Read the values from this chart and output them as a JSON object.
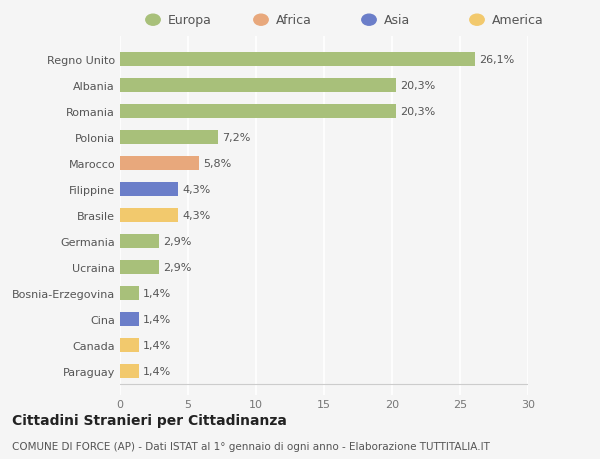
{
  "categories": [
    "Paraguay",
    "Canada",
    "Cina",
    "Bosnia-Erzegovina",
    "Ucraina",
    "Germania",
    "Brasile",
    "Filippine",
    "Marocco",
    "Polonia",
    "Romania",
    "Albania",
    "Regno Unito"
  ],
  "values": [
    1.4,
    1.4,
    1.4,
    1.4,
    2.9,
    2.9,
    4.3,
    4.3,
    5.8,
    7.2,
    20.3,
    20.3,
    26.1
  ],
  "labels": [
    "1,4%",
    "1,4%",
    "1,4%",
    "1,4%",
    "2,9%",
    "2,9%",
    "4,3%",
    "4,3%",
    "5,8%",
    "7,2%",
    "20,3%",
    "20,3%",
    "26,1%"
  ],
  "colors": [
    "#f2c96d",
    "#f2c96d",
    "#6b7ec9",
    "#a8c07a",
    "#a8c07a",
    "#a8c07a",
    "#f2c96d",
    "#6b7ec9",
    "#e8a87c",
    "#a8c07a",
    "#a8c07a",
    "#a8c07a",
    "#a8c07a"
  ],
  "legend": [
    {
      "label": "Europa",
      "color": "#a8c07a"
    },
    {
      "label": "Africa",
      "color": "#e8a87c"
    },
    {
      "label": "Asia",
      "color": "#6b7ec9"
    },
    {
      "label": "America",
      "color": "#f2c96d"
    }
  ],
  "xlim": [
    0,
    30
  ],
  "xticks": [
    0,
    5,
    10,
    15,
    20,
    25,
    30
  ],
  "title": "Cittadini Stranieri per Cittadinanza",
  "subtitle": "COMUNE DI FORCE (AP) - Dati ISTAT al 1° gennaio di ogni anno - Elaborazione TUTTITALIA.IT",
  "bg_color": "#f5f5f5",
  "grid_color": "#ffffff",
  "bar_height": 0.55,
  "label_fontsize": 8,
  "tick_fontsize": 8,
  "title_fontsize": 10,
  "subtitle_fontsize": 7.5
}
